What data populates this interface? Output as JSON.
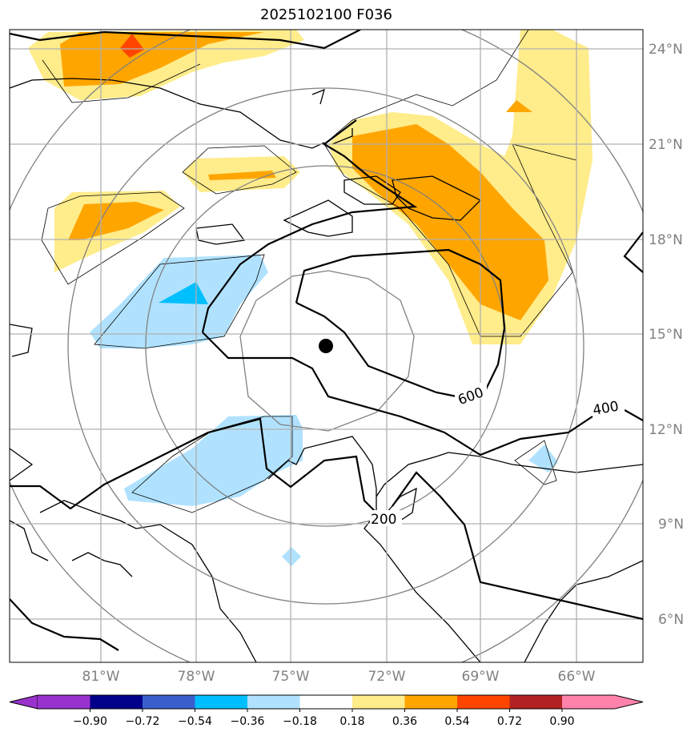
{
  "title": "2025102100 F036",
  "lat_labels": [
    "24°N",
    "21°N",
    "18°N",
    "15°N",
    "12°N",
    "9°N",
    "6°N"
  ],
  "lon_labels": [
    "81°W",
    "78°W",
    "75°W",
    "72°W",
    "69°W",
    "66°W"
  ],
  "contour_labels": [
    "600",
    "400",
    "200"
  ],
  "storm_center": {
    "lat": 14.6,
    "lon": -73.9
  },
  "colorbar": {
    "ticks": [
      "−0.90",
      "−0.72",
      "−0.54",
      "−0.36",
      "−0.18",
      "0.18",
      "0.36",
      "0.54",
      "0.72",
      "0.90"
    ],
    "colors": [
      "#9932cc",
      "#00008b",
      "#3a5fcd",
      "#00bfff",
      "#b0e2ff",
      "#ffffff",
      "#ffec8b",
      "#ffa500",
      "#ff4500",
      "#b22222",
      "#ff82ab"
    ]
  }
}
